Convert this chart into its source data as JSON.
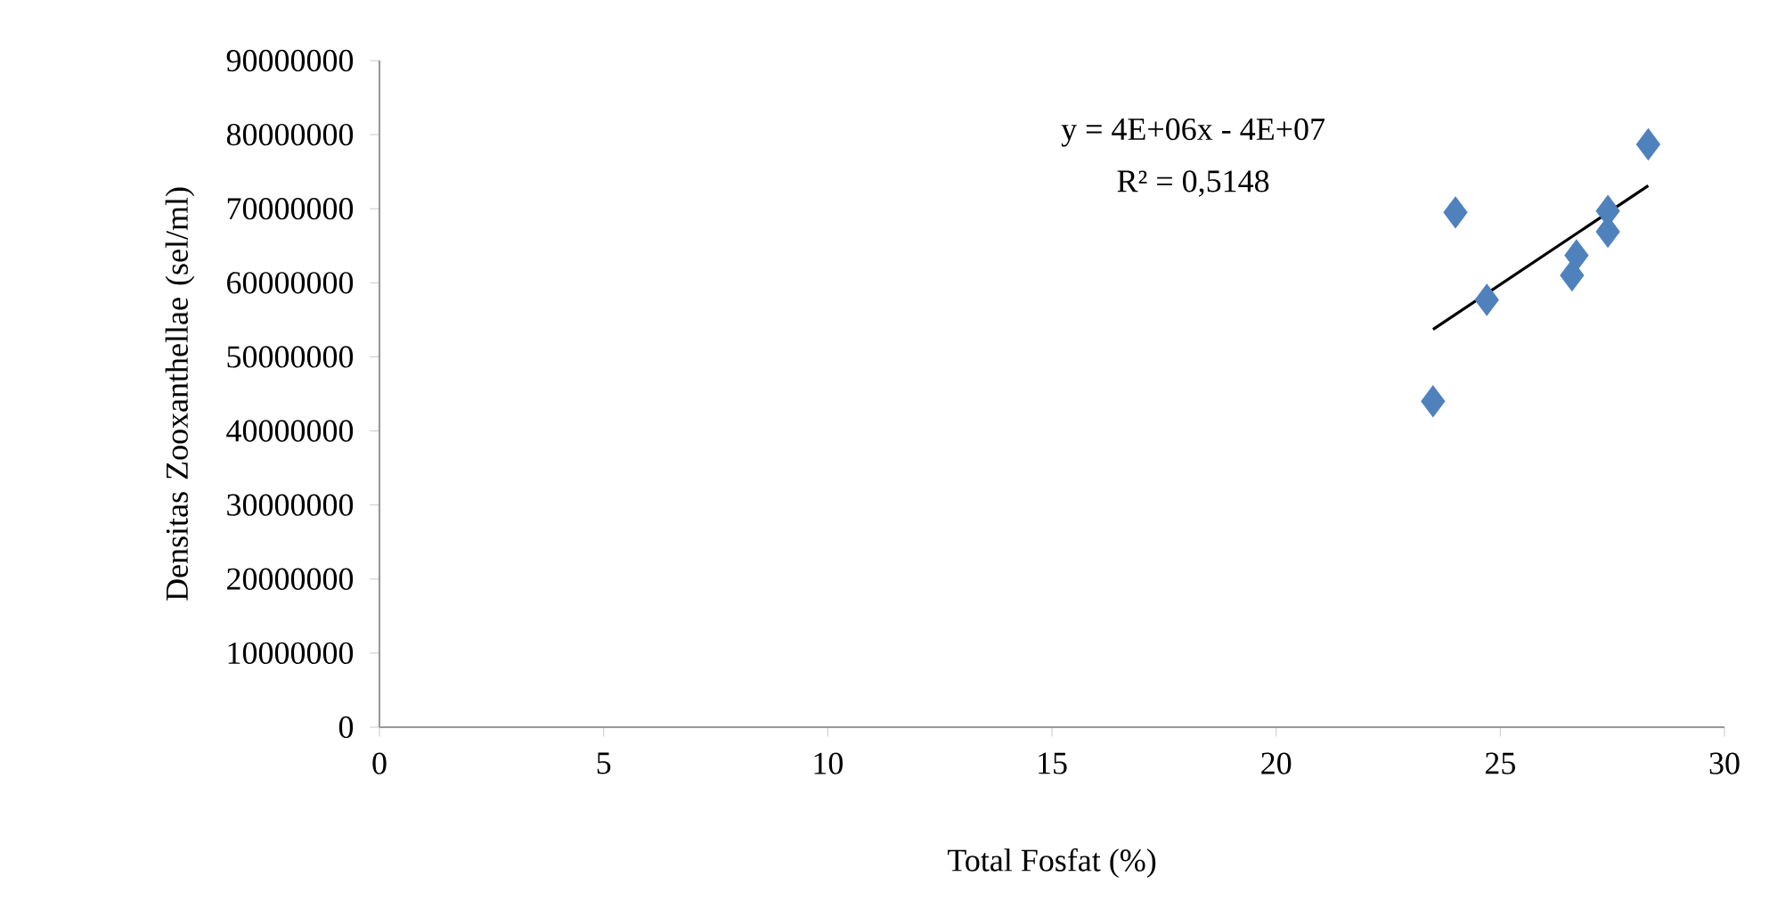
{
  "chart_data": {
    "type": "scatter",
    "xlabel": "Total Fosfat (%)",
    "ylabel": "Densitas Zooxanthellae (sel/ml)",
    "annotations": [
      "y = 4E+06x - 4E+07",
      "R² = 0,5148"
    ],
    "xlim": [
      0,
      30
    ],
    "xticks": [
      0,
      5,
      10,
      15,
      20,
      25,
      30
    ],
    "ylim": [
      0,
      90000000
    ],
    "yticks": [
      0,
      10000000,
      20000000,
      30000000,
      40000000,
      50000000,
      60000000,
      70000000,
      80000000,
      90000000
    ],
    "grid": false,
    "series": [
      {
        "type": "scatter",
        "marker": "diamond",
        "color": "#4f81bd",
        "x": [
          24.0,
          28.3,
          27.4,
          27.4,
          26.7,
          26.6,
          24.7,
          23.5
        ],
        "values": [
          69500000,
          78700000,
          69700000,
          66900000,
          63700000,
          61000000,
          57700000,
          44000000
        ]
      },
      {
        "type": "line",
        "marker": "none",
        "color": "#000000",
        "x": [
          23.5,
          28.3
        ],
        "values": [
          53700000,
          73100000
        ]
      }
    ]
  }
}
